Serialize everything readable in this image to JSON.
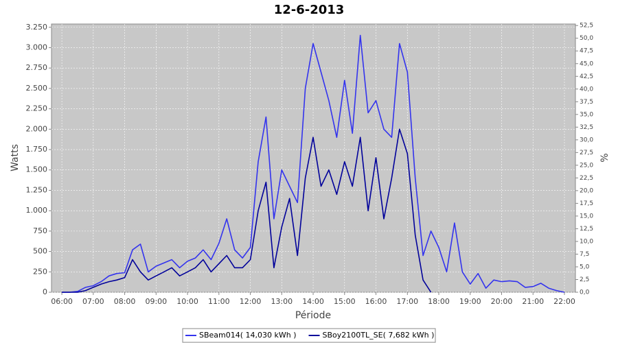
{
  "chart_data": {
    "type": "line",
    "title": "12-6-2013",
    "x_label": "Période",
    "y_label": "Watts",
    "y2_label": "%",
    "x": [
      6,
      6.25,
      6.5,
      6.75,
      7,
      7.25,
      7.5,
      7.75,
      8,
      8.25,
      8.5,
      8.75,
      9,
      9.25,
      9.5,
      9.75,
      10,
      10.25,
      10.5,
      10.75,
      11,
      11.25,
      11.5,
      11.75,
      12,
      12.25,
      12.5,
      12.75,
      13,
      13.25,
      13.5,
      13.75,
      14,
      14.25,
      14.5,
      14.75,
      15,
      15.25,
      15.5,
      15.75,
      16,
      16.25,
      16.5,
      16.75,
      17,
      17.25,
      17.5,
      17.75,
      18,
      18.25,
      18.5,
      18.75,
      19,
      19.25,
      19.5,
      19.75,
      20,
      20.25,
      20.5,
      20.75,
      21,
      21.25,
      21.5,
      21.75,
      22
    ],
    "series": [
      {
        "name": "SBeam014( 14,030 kWh )",
        "color": "#3333ee",
        "values": [
          0,
          0,
          10,
          60,
          80,
          130,
          200,
          230,
          240,
          520,
          590,
          250,
          320,
          360,
          400,
          300,
          380,
          420,
          520,
          400,
          600,
          900,
          520,
          420,
          550,
          1600,
          2150,
          900,
          1500,
          1300,
          1100,
          2500,
          3050,
          2700,
          2350,
          1900,
          2600,
          1950,
          3150,
          2200,
          2350,
          2000,
          1900,
          3050,
          2700,
          1400,
          450,
          750,
          550,
          250,
          850,
          250,
          100,
          230,
          50,
          150,
          130,
          140,
          130,
          60,
          70,
          110,
          50,
          20,
          0
        ]
      },
      {
        "name": "SBoy2100TL_SE( 7,682 kWh )",
        "color": "#00009a",
        "values": [
          0,
          0,
          0,
          20,
          60,
          100,
          130,
          150,
          180,
          400,
          250,
          150,
          200,
          250,
          300,
          200,
          250,
          300,
          400,
          250,
          350,
          450,
          300,
          300,
          400,
          1000,
          1350,
          300,
          800,
          1150,
          450,
          1400,
          1900,
          1300,
          1500,
          1200,
          1600,
          1300,
          1900,
          1000,
          1650,
          900,
          1400,
          2000,
          1700,
          700,
          150,
          0,
          null,
          null,
          null,
          null,
          null,
          null,
          null,
          null,
          null,
          null,
          null,
          null,
          null,
          null,
          null,
          null,
          null
        ]
      }
    ],
    "xlim": [
      5.67,
      22.35
    ],
    "xticks": [
      {
        "value": 6,
        "label": "06:00"
      },
      {
        "value": 7,
        "label": "07:00"
      },
      {
        "value": 8,
        "label": "08:00"
      },
      {
        "value": 9,
        "label": "09:00"
      },
      {
        "value": 10,
        "label": "10:00"
      },
      {
        "value": 11,
        "label": "11:00"
      },
      {
        "value": 12,
        "label": "12:00"
      },
      {
        "value": 13,
        "label": "13:00"
      },
      {
        "value": 14,
        "label": "14:00"
      },
      {
        "value": 15,
        "label": "15:00"
      },
      {
        "value": 16,
        "label": "16:00"
      },
      {
        "value": 17,
        "label": "17:00"
      },
      {
        "value": 18,
        "label": "18:00"
      },
      {
        "value": 19,
        "label": "19:00"
      },
      {
        "value": 20,
        "label": "20:00"
      },
      {
        "value": 21,
        "label": "21:00"
      },
      {
        "value": 22,
        "label": "22:00"
      }
    ],
    "ylim": [
      0,
      3290
    ],
    "yticks": [
      0,
      250,
      500,
      750,
      {
        "value": 1000,
        "label": "1.000"
      },
      {
        "value": 1250,
        "label": "1.250"
      },
      {
        "value": 1500,
        "label": "1.500"
      },
      {
        "value": 1750,
        "label": "1.750"
      },
      {
        "value": 2000,
        "label": "2.000"
      },
      {
        "value": 2250,
        "label": "2.250"
      },
      {
        "value": 2500,
        "label": "2.500"
      },
      {
        "value": 2750,
        "label": "2.750"
      },
      {
        "value": 3000,
        "label": "3.000"
      },
      {
        "value": 3250,
        "label": "3.250"
      }
    ],
    "y2lim": [
      0,
      52.8
    ],
    "y2ticks": [
      {
        "value": 0,
        "label": "0,0"
      },
      {
        "value": 2.5,
        "label": "2,5"
      },
      {
        "value": 5,
        "label": "5,0"
      },
      {
        "value": 7.5,
        "label": "7,5"
      },
      {
        "value": 10,
        "label": "10,0"
      },
      {
        "value": 12.5,
        "label": "12,5"
      },
      {
        "value": 15,
        "label": "15,0"
      },
      {
        "value": 17.5,
        "label": "17,5"
      },
      {
        "value": 20,
        "label": "20,0"
      },
      {
        "value": 22.5,
        "label": "22,5"
      },
      {
        "value": 25,
        "label": "25,0"
      },
      {
        "value": 27.5,
        "label": "27,5"
      },
      {
        "value": 30,
        "label": "30,0"
      },
      {
        "value": 32.5,
        "label": "32,5"
      },
      {
        "value": 35,
        "label": "35,0"
      },
      {
        "value": 37.5,
        "label": "37,5"
      },
      {
        "value": 40,
        "label": "40,0"
      },
      {
        "value": 42.5,
        "label": "42,5"
      },
      {
        "value": 45,
        "label": "45,0"
      },
      {
        "value": 47.5,
        "label": "47,5"
      },
      {
        "value": 50,
        "label": "50,0"
      },
      {
        "value": 52.5,
        "label": "52,5"
      }
    ],
    "grid": true,
    "legend": "bottom"
  }
}
